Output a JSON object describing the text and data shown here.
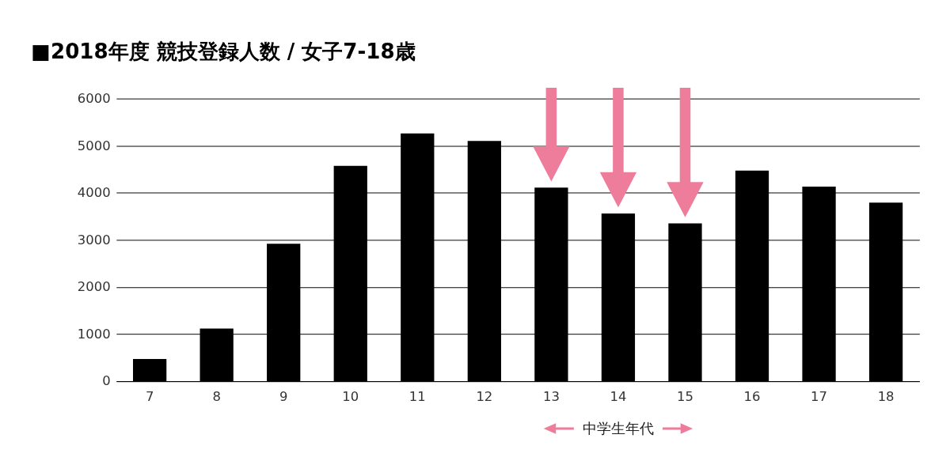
{
  "chart_data": {
    "type": "bar",
    "title": "■2018年度 競技登録人数 / 女子7-18歳",
    "categories": [
      "7",
      "8",
      "9",
      "10",
      "11",
      "12",
      "13",
      "14",
      "15",
      "16",
      "17",
      "18"
    ],
    "values": [
      470,
      1120,
      2920,
      4570,
      5260,
      5100,
      4110,
      3560,
      3350,
      4470,
      4130,
      3790
    ],
    "color": "#000000",
    "ylim": [
      0,
      6000
    ],
    "yticks": [
      0,
      1000,
      2000,
      3000,
      4000,
      5000,
      6000
    ],
    "grid": "y",
    "annotations": [
      "中学生年代"
    ]
  }
}
